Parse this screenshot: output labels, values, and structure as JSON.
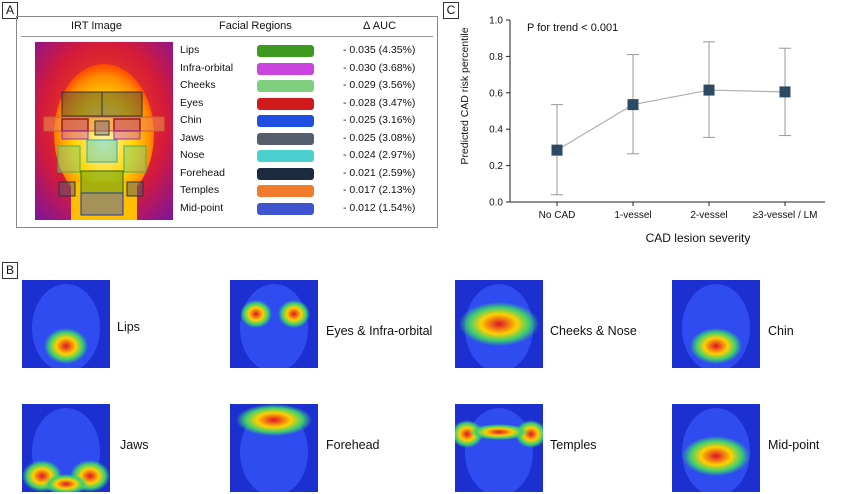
{
  "panelA": {
    "label": "A",
    "headers": {
      "image": "IRT Image",
      "regions": "Facial Regions",
      "auc": "Δ AUC"
    },
    "rows": [
      {
        "name": "Lips",
        "color": "#3e9a1f",
        "value": "- 0.035 (4.35%)"
      },
      {
        "name": "Infra-orbital",
        "color": "#cc44e0",
        "value": "- 0.030 (3.68%)"
      },
      {
        "name": "Cheeks",
        "color": "#7fcf7f",
        "value": "- 0.029 (3.56%)"
      },
      {
        "name": "Eyes",
        "color": "#d11a1a",
        "value": "- 0.028 (3.47%)"
      },
      {
        "name": "Chin",
        "color": "#1f4fe0",
        "value": "- 0.025 (3.16%)"
      },
      {
        "name": "Jaws",
        "color": "#565e6e",
        "value": "- 0.025 (3.08%)"
      },
      {
        "name": "Nose",
        "color": "#4ccfcf",
        "value": "- 0.024 (2.97%)"
      },
      {
        "name": "Forehead",
        "color": "#1c2b3f",
        "value": "- 0.021 (2.59%)"
      },
      {
        "name": "Temples",
        "color": "#f27a2c",
        "value": "- 0.017 (2.13%)"
      },
      {
        "name": "Mid-point",
        "color": "#3f55cf",
        "value": "- 0.012 (1.54%)"
      }
    ]
  },
  "panelB": {
    "label": "B",
    "items": [
      {
        "label": "Lips"
      },
      {
        "label": "Eyes & Infra-orbital"
      },
      {
        "label": "Cheeks & Nose"
      },
      {
        "label": "Chin"
      },
      {
        "label": "Jaws"
      },
      {
        "label": "Forehead"
      },
      {
        "label": "Temples"
      },
      {
        "label": "Mid-point"
      }
    ]
  },
  "panelC": {
    "label": "C"
  },
  "chart_data": {
    "type": "scatter",
    "categories": [
      "No CAD",
      "1-vessel",
      "2-vessel",
      "≥3-vessel / LM"
    ],
    "values": [
      0.285,
      0.535,
      0.615,
      0.605
    ],
    "error_low": [
      0.04,
      0.265,
      0.355,
      0.365
    ],
    "error_high": [
      0.535,
      0.81,
      0.88,
      0.845
    ],
    "annotation": "P for trend < 0.001",
    "xlabel": "CAD lesion severity",
    "ylabel": "Predicted CAD risk percentile",
    "ylim": [
      0,
      1.0
    ],
    "yticks": [
      "0.0",
      "0.2",
      "0.4",
      "0.6",
      "0.8",
      "1.0"
    ],
    "marker_color": "#2b4a63",
    "line_color": "#b0b0b0",
    "grid": false
  }
}
